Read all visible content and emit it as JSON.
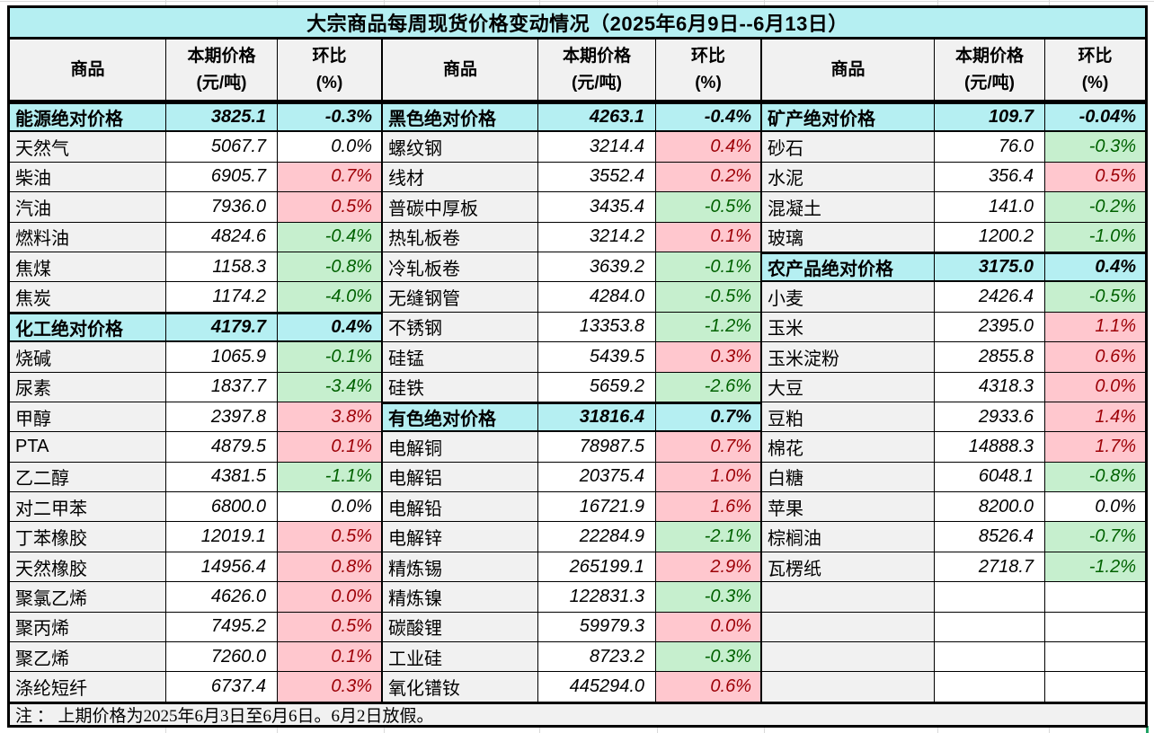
{
  "title": "大宗商品每周现货价格变动情况（2025年6月9日--6月13日）",
  "header": {
    "commodity": "商品",
    "price_line1": "本期价格",
    "price_line2": "(元/吨)",
    "pct_line1": "环比",
    "pct_line2": "(%)"
  },
  "note": "注 ： 上期价格为2025年6月3日至6月6日。6月2日放假。",
  "colors": {
    "section_bg": "#b5eff2",
    "label_bg": "#f1f1f1",
    "up_bg": "#ffc7ce",
    "up_text": "#9c0006",
    "down_bg": "#c6efce",
    "down_text": "#006100",
    "border": "#000000",
    "selection_tick": "#21a366"
  },
  "groups": [
    {
      "rows": [
        {
          "kind": "section",
          "name": "能源绝对价格",
          "price": "3825.1",
          "pct": "-0.3%"
        },
        {
          "kind": "item",
          "change": "flat",
          "name": "天然气",
          "price": "5067.7",
          "pct": "0.0%"
        },
        {
          "kind": "item",
          "change": "up",
          "name": "柴油",
          "price": "6905.7",
          "pct": "0.7%"
        },
        {
          "kind": "item",
          "change": "up",
          "name": "汽油",
          "price": "7936.0",
          "pct": "0.5%"
        },
        {
          "kind": "item",
          "change": "down",
          "name": "燃料油",
          "price": "4824.6",
          "pct": "-0.4%"
        },
        {
          "kind": "item",
          "change": "down",
          "name": "焦煤",
          "price": "1158.3",
          "pct": "-0.8%"
        },
        {
          "kind": "item",
          "change": "down",
          "name": "焦炭",
          "price": "1174.2",
          "pct": "-4.0%"
        },
        {
          "kind": "section",
          "name": "化工绝对价格",
          "price": "4179.7",
          "pct": "0.4%"
        },
        {
          "kind": "item",
          "change": "down",
          "name": "烧碱",
          "price": "1065.9",
          "pct": "-0.1%"
        },
        {
          "kind": "item",
          "change": "down",
          "name": "尿素",
          "price": "1837.7",
          "pct": "-3.4%"
        },
        {
          "kind": "item",
          "change": "up",
          "name": "甲醇",
          "price": "2397.8",
          "pct": "3.8%"
        },
        {
          "kind": "item",
          "change": "up",
          "name": "PTA",
          "price": "4879.5",
          "pct": "0.1%"
        },
        {
          "kind": "item",
          "change": "down",
          "name": "乙二醇",
          "price": "4381.5",
          "pct": "-1.1%"
        },
        {
          "kind": "item",
          "change": "flat",
          "name": "对二甲苯",
          "price": "6800.0",
          "pct": "0.0%"
        },
        {
          "kind": "item",
          "change": "up",
          "name": "丁苯橡胶",
          "price": "12019.1",
          "pct": "0.5%"
        },
        {
          "kind": "item",
          "change": "up",
          "name": "天然橡胶",
          "price": "14956.4",
          "pct": "0.8%"
        },
        {
          "kind": "item",
          "change": "up",
          "name": "聚氯乙烯",
          "price": "4626.0",
          "pct": "0.0%"
        },
        {
          "kind": "item",
          "change": "up",
          "name": "聚丙烯",
          "price": "7495.2",
          "pct": "0.5%"
        },
        {
          "kind": "item",
          "change": "up",
          "name": "聚乙烯",
          "price": "7260.0",
          "pct": "0.1%"
        },
        {
          "kind": "item",
          "change": "up",
          "name": "涤纶短纤",
          "price": "6737.4",
          "pct": "0.3%"
        }
      ]
    },
    {
      "rows": [
        {
          "kind": "section",
          "name": "黑色绝对价格",
          "price": "4263.1",
          "pct": "-0.4%"
        },
        {
          "kind": "item",
          "change": "up",
          "name": "螺纹钢",
          "price": "3214.4",
          "pct": "0.4%"
        },
        {
          "kind": "item",
          "change": "up",
          "name": "线材",
          "price": "3552.4",
          "pct": "0.2%"
        },
        {
          "kind": "item",
          "change": "down",
          "name": "普碳中厚板",
          "price": "3435.4",
          "pct": "-0.5%"
        },
        {
          "kind": "item",
          "change": "up",
          "name": "热轧板卷",
          "price": "3214.2",
          "pct": "0.1%"
        },
        {
          "kind": "item",
          "change": "down",
          "name": "冷轧板卷",
          "price": "3639.2",
          "pct": "-0.1%"
        },
        {
          "kind": "item",
          "change": "down",
          "name": "无缝钢管",
          "price": "4284.0",
          "pct": "-0.5%"
        },
        {
          "kind": "item",
          "change": "down",
          "name": "不锈钢",
          "price": "13353.8",
          "pct": "-1.2%"
        },
        {
          "kind": "item",
          "change": "up",
          "name": "硅锰",
          "price": "5439.5",
          "pct": "0.3%"
        },
        {
          "kind": "item",
          "change": "down",
          "name": "硅铁",
          "price": "5659.2",
          "pct": "-2.6%"
        },
        {
          "kind": "section",
          "name": "有色绝对价格",
          "price": "31816.4",
          "pct": "0.7%"
        },
        {
          "kind": "item",
          "change": "up",
          "name": "电解铜",
          "price": "78987.5",
          "pct": "0.7%"
        },
        {
          "kind": "item",
          "change": "up",
          "name": "电解铝",
          "price": "20375.4",
          "pct": "1.0%"
        },
        {
          "kind": "item",
          "change": "up",
          "name": "电解铅",
          "price": "16721.9",
          "pct": "1.6%"
        },
        {
          "kind": "item",
          "change": "down",
          "name": "电解锌",
          "price": "22284.9",
          "pct": "-2.1%"
        },
        {
          "kind": "item",
          "change": "up",
          "name": "精炼锡",
          "price": "265199.1",
          "pct": "2.9%"
        },
        {
          "kind": "item",
          "change": "down",
          "name": "精炼镍",
          "price": "122831.3",
          "pct": "-0.3%"
        },
        {
          "kind": "item",
          "change": "up",
          "name": "碳酸锂",
          "price": "59979.3",
          "pct": "0.0%"
        },
        {
          "kind": "item",
          "change": "down",
          "name": "工业硅",
          "price": "8723.2",
          "pct": "-0.3%"
        },
        {
          "kind": "item",
          "change": "up",
          "name": "氧化镨钕",
          "price": "445294.0",
          "pct": "0.6%"
        }
      ]
    },
    {
      "rows": [
        {
          "kind": "section",
          "name": "矿产绝对价格",
          "price": "109.7",
          "pct": "-0.04%"
        },
        {
          "kind": "item",
          "change": "down",
          "name": "砂石",
          "price": "76.0",
          "pct": "-0.3%"
        },
        {
          "kind": "item",
          "change": "up",
          "name": "水泥",
          "price": "356.4",
          "pct": "0.5%"
        },
        {
          "kind": "item",
          "change": "down",
          "name": "混凝土",
          "price": "141.0",
          "pct": "-0.2%"
        },
        {
          "kind": "item",
          "change": "down",
          "name": "玻璃",
          "price": "1200.2",
          "pct": "-1.0%"
        },
        {
          "kind": "section",
          "name": "农产品绝对价格",
          "price": "3175.0",
          "pct": "0.4%"
        },
        {
          "kind": "item",
          "change": "down",
          "name": "小麦",
          "price": "2426.4",
          "pct": "-0.5%"
        },
        {
          "kind": "item",
          "change": "up",
          "name": "玉米",
          "price": "2395.0",
          "pct": "1.1%"
        },
        {
          "kind": "item",
          "change": "up",
          "name": "玉米淀粉",
          "price": "2855.8",
          "pct": "0.6%"
        },
        {
          "kind": "item",
          "change": "up",
          "name": "大豆",
          "price": "4318.3",
          "pct": "0.0%"
        },
        {
          "kind": "item",
          "change": "up",
          "name": "豆粕",
          "price": "2933.6",
          "pct": "1.4%"
        },
        {
          "kind": "item",
          "change": "up",
          "name": "棉花",
          "price": "14888.3",
          "pct": "1.7%"
        },
        {
          "kind": "item",
          "change": "down",
          "name": "白糖",
          "price": "6048.1",
          "pct": "-0.8%"
        },
        {
          "kind": "item",
          "change": "flat",
          "name": "苹果",
          "price": "8200.0",
          "pct": "0.0%"
        },
        {
          "kind": "item",
          "change": "down",
          "name": "棕榈油",
          "price": "8526.4",
          "pct": "-0.7%"
        },
        {
          "kind": "item",
          "change": "down",
          "name": "瓦楞纸",
          "price": "2718.7",
          "pct": "-1.2%"
        },
        {
          "kind": "empty",
          "name": "",
          "price": "",
          "pct": ""
        },
        {
          "kind": "empty",
          "name": "",
          "price": "",
          "pct": ""
        },
        {
          "kind": "empty",
          "name": "",
          "price": "",
          "pct": ""
        },
        {
          "kind": "empty",
          "name": "",
          "price": "",
          "pct": ""
        }
      ]
    }
  ]
}
